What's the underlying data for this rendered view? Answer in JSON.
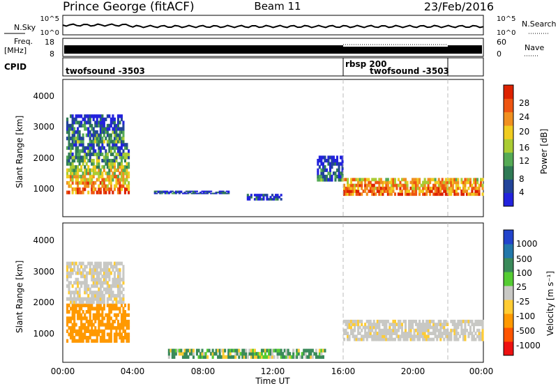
{
  "header": {
    "station": "Prince George (fitACF)",
    "beam": "Beam 11",
    "date": "23/Feb/2016"
  },
  "nsky_panel": {
    "left_label": "N.Sky",
    "right_label": "N.Search",
    "left_ticks": [
      "10^5",
      "10^0"
    ],
    "right_ticks": [
      "10^5",
      "10^0"
    ]
  },
  "freq_panel": {
    "left_label_1": "Freq.",
    "left_label_2": "[MHz]",
    "left_ticks": [
      "18",
      "8"
    ],
    "right_ticks": [
      "60",
      "0"
    ],
    "right_label": "Nave"
  },
  "cpid_panel": {
    "label": "CPID",
    "programs": [
      {
        "name": "twofsound -3503",
        "start_hour": 0,
        "end_hour": 16
      },
      {
        "name": "rbsp 200",
        "start_hour": 16,
        "end_hour": 24
      },
      {
        "name": "twofsound -3503",
        "start_hour": 16,
        "end_hour": 22
      }
    ],
    "boundaries_hours": [
      16,
      22
    ]
  },
  "chart_data": [
    {
      "type": "heatmap",
      "panel": "power",
      "ylabel": "Slant Range [km]",
      "ylim": [
        180,
        4500
      ],
      "yticks": [
        "1000",
        "2000",
        "3000",
        "4000"
      ],
      "colorbar_label": "Power [dB]",
      "colorbar_ticks": [
        "4",
        "8",
        "12",
        "16",
        "20",
        "24",
        "28"
      ],
      "colorbar_colors": [
        "#2222dd",
        "#224499",
        "#2f7a55",
        "#55aa55",
        "#aacc33",
        "#f0cc20",
        "#f09020",
        "#ee5511",
        "#dd2200"
      ],
      "regions": [
        {
          "t0": 0.2,
          "t1": 3.8,
          "r0": 900,
          "r1": 2500,
          "level": 7
        },
        {
          "t0": 0.2,
          "t1": 3.5,
          "r0": 2500,
          "r1": 3400,
          "level": 3
        },
        {
          "t0": 5.2,
          "t1": 9.5,
          "r0": 900,
          "r1": 1000,
          "level": 1
        },
        {
          "t0": 10.5,
          "t1": 12.5,
          "r0": 700,
          "r1": 900,
          "level": 1
        },
        {
          "t0": 14.5,
          "t1": 16.0,
          "r0": 1300,
          "r1": 2100,
          "level": 2
        },
        {
          "t0": 16.0,
          "t1": 24.0,
          "r0": 850,
          "r1": 1400,
          "level": 7
        }
      ]
    },
    {
      "type": "heatmap",
      "panel": "velocity",
      "ylabel": "Slant Range [km]",
      "ylim": [
        180,
        4500
      ],
      "yticks": [
        "1000",
        "2000",
        "3000",
        "4000"
      ],
      "colorbar_label": "Velocity [m s⁻¹]",
      "colorbar_ticks": [
        "1000",
        "500",
        "100",
        "25",
        "-25",
        "-100",
        "-500",
        "-1000"
      ],
      "colorbar_colors": [
        "#2244cc",
        "#2277aa",
        "#3a8a5a",
        "#55cc33",
        "#c8c8c4",
        "#ffcc33",
        "#ff9900",
        "#ff5500",
        "#ee1111"
      ],
      "regions": [
        {
          "t0": 0.2,
          "t1": 3.8,
          "r0": 800,
          "r1": 2000,
          "value": -300
        },
        {
          "t0": 0.2,
          "t1": 3.5,
          "r0": 2000,
          "r1": 3300,
          "value": 0
        },
        {
          "t0": 16.0,
          "t1": 24.0,
          "r0": 850,
          "r1": 1500,
          "value": 0
        },
        {
          "t0": 6.0,
          "t1": 15.0,
          "r0": 300,
          "r1": 600,
          "value": 100
        }
      ]
    }
  ],
  "xaxis": {
    "label": "Time UT",
    "ticks": [
      "00:00",
      "04:00",
      "08:00",
      "12:00",
      "16:00",
      "20:00",
      "00:00"
    ],
    "range_hours": [
      0,
      24
    ]
  }
}
